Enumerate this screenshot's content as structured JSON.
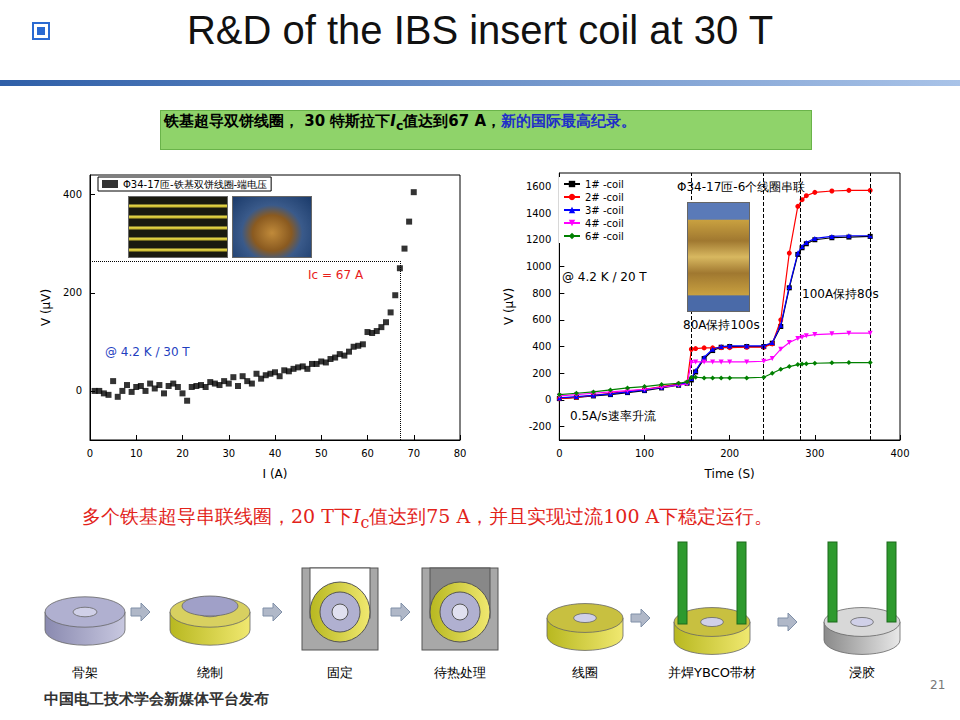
{
  "slide": {
    "title": "R&D of the IBS insert coil at 30 T",
    "banner": [
      {
        "text": "铁基超导双饼线圈， 30 特斯拉下"
      },
      {
        "text": "I",
        "style": "italic"
      },
      {
        "text": "c",
        "style": "subscript"
      },
      {
        "text": "值达到67 A，"
      },
      {
        "text": "新的国际最高纪录。",
        "color": "#1f2fc8"
      }
    ],
    "caption": [
      {
        "text": "多个铁基超导串联线圈，20 T下"
      },
      {
        "text": "I",
        "style": "italic"
      },
      {
        "text": "c",
        "style": "subscript"
      },
      {
        "text": "值达到75 A，并且实现过流100 A下稳定运行。"
      }
    ],
    "process_steps": [
      "骨架",
      "绕制",
      "固定",
      "待热处理",
      "线圈",
      "并焊YBCO带材",
      "浸胶"
    ],
    "footer": "中国电工技术学会新媒体平台发布",
    "page_number": "21"
  },
  "chart_data": [
    {
      "type": "scatter",
      "x_label": "I (A)",
      "y_label": "V (μV)",
      "x": [
        1,
        2,
        3,
        4,
        5,
        6,
        7,
        8,
        9,
        10,
        11,
        12,
        13,
        14,
        15,
        16,
        17,
        18,
        19,
        20,
        21,
        22,
        23,
        24,
        25,
        26,
        27,
        28,
        29,
        30,
        31,
        32,
        33,
        34,
        35,
        36,
        37,
        38,
        39,
        40,
        41,
        42,
        43,
        44,
        45,
        46,
        47,
        48,
        49,
        50,
        51,
        52,
        53,
        54,
        55,
        56,
        57,
        58,
        59,
        60,
        61,
        62,
        63,
        64,
        65,
        66,
        67,
        68,
        69,
        70
      ],
      "series": [
        {
          "name": "Φ34-17匝-铁基双饼线圈-端电压",
          "color": "#000000",
          "marker": "square",
          "values": [
            0,
            0,
            -5,
            -8,
            20,
            -12,
            0,
            12,
            -2,
            8,
            10,
            0,
            15,
            5,
            12,
            -5,
            10,
            15,
            8,
            -5,
            -20,
            8,
            10,
            12,
            8,
            18,
            15,
            12,
            20,
            15,
            28,
            10,
            30,
            20,
            15,
            35,
            25,
            32,
            35,
            38,
            30,
            42,
            40,
            45,
            48,
            50,
            45,
            55,
            55,
            60,
            58,
            65,
            68,
            75,
            72,
            80,
            90,
            92,
            95,
            120,
            118,
            122,
            130,
            140,
            160,
            195,
            250,
            290,
            345,
            405
          ]
        }
      ],
      "xlim": [
        0,
        80
      ],
      "xticks": [
        0,
        10,
        20,
        30,
        40,
        50,
        60,
        70,
        80
      ],
      "ylim": [
        -100,
        440
      ],
      "yticks": [
        0,
        200,
        400
      ],
      "grid": false,
      "legend": "upper left",
      "annotations": [
        {
          "text": "Ic = 67 A",
          "color": "#e8201c"
        },
        {
          "text": "@ 4.2 K / 30 T",
          "color": "#1f3fbf"
        }
      ],
      "reference_lines": [
        {
          "x": 67,
          "y": 265,
          "line_style": "dotted"
        }
      ]
    },
    {
      "type": "line",
      "x_label": "Time (S)",
      "y_label": "V (μV)",
      "x": [
        0,
        20,
        40,
        60,
        80,
        100,
        120,
        140,
        150,
        155,
        160,
        170,
        180,
        190,
        200,
        220,
        240,
        250,
        260,
        270,
        280,
        285,
        290,
        300,
        320,
        340,
        365
      ],
      "series": [
        {
          "name": "1# -coil",
          "color": "#000000",
          "marker": "square",
          "values": [
            10,
            20,
            30,
            40,
            55,
            70,
            90,
            110,
            125,
            150,
            210,
            310,
            370,
            395,
            400,
            400,
            400,
            425,
            550,
            840,
            1090,
            1140,
            1170,
            1200,
            1215,
            1220,
            1225
          ]
        },
        {
          "name": "2# -coil",
          "color": "#ff0000",
          "marker": "circle",
          "values": [
            10,
            20,
            35,
            50,
            65,
            80,
            100,
            120,
            130,
            380,
            385,
            390,
            390,
            392,
            392,
            395,
            395,
            420,
            600,
            1100,
            1450,
            1500,
            1530,
            1555,
            1565,
            1570,
            1570
          ]
        },
        {
          "name": "3# -coil",
          "color": "#0000ff",
          "marker": "triangle",
          "values": [
            15,
            25,
            35,
            45,
            60,
            75,
            95,
            115,
            130,
            160,
            220,
            320,
            380,
            400,
            405,
            405,
            405,
            430,
            560,
            850,
            1100,
            1150,
            1180,
            1210,
            1225,
            1230,
            1230
          ]
        },
        {
          "name": "4# -coil",
          "color": "#ff00ff",
          "marker": "triangle-down",
          "values": [
            30,
            40,
            50,
            60,
            70,
            80,
            95,
            110,
            120,
            280,
            285,
            285,
            285,
            285,
            285,
            285,
            290,
            310,
            380,
            430,
            460,
            470,
            480,
            490,
            495,
            500,
            500
          ]
        },
        {
          "name": "6# -coil",
          "color": "#008000",
          "marker": "diamond",
          "values": [
            40,
            50,
            60,
            75,
            90,
            100,
            115,
            125,
            135,
            170,
            170,
            165,
            165,
            165,
            165,
            165,
            170,
            200,
            230,
            250,
            265,
            270,
            272,
            275,
            278,
            280,
            280
          ]
        }
      ],
      "xlim": [
        0,
        400
      ],
      "xticks": [
        0,
        100,
        200,
        300,
        400
      ],
      "ylim": [
        -300,
        1700
      ],
      "yticks": [
        -200,
        0,
        200,
        400,
        600,
        800,
        1000,
        1200,
        1400,
        1600
      ],
      "grid": false,
      "legend": "upper left",
      "annotations": [
        {
          "text": "Φ34-17匝-6个线圈串联",
          "color": "#000000"
        },
        {
          "text": "@ 4.2 K / 20 T",
          "color": "#000000"
        },
        {
          "text": "80A保持100s",
          "color": "#000000"
        },
        {
          "text": "100A保持80s",
          "color": "#000000"
        },
        {
          "text": "0.5A/s速率升流",
          "color": "#000000"
        }
      ],
      "reference_lines": [
        {
          "x": 155,
          "line_style": "dashed"
        },
        {
          "x": 240,
          "line_style": "dashed"
        },
        {
          "x": 283,
          "line_style": "dashed"
        },
        {
          "x": 365,
          "line_style": "dashed"
        }
      ]
    }
  ]
}
